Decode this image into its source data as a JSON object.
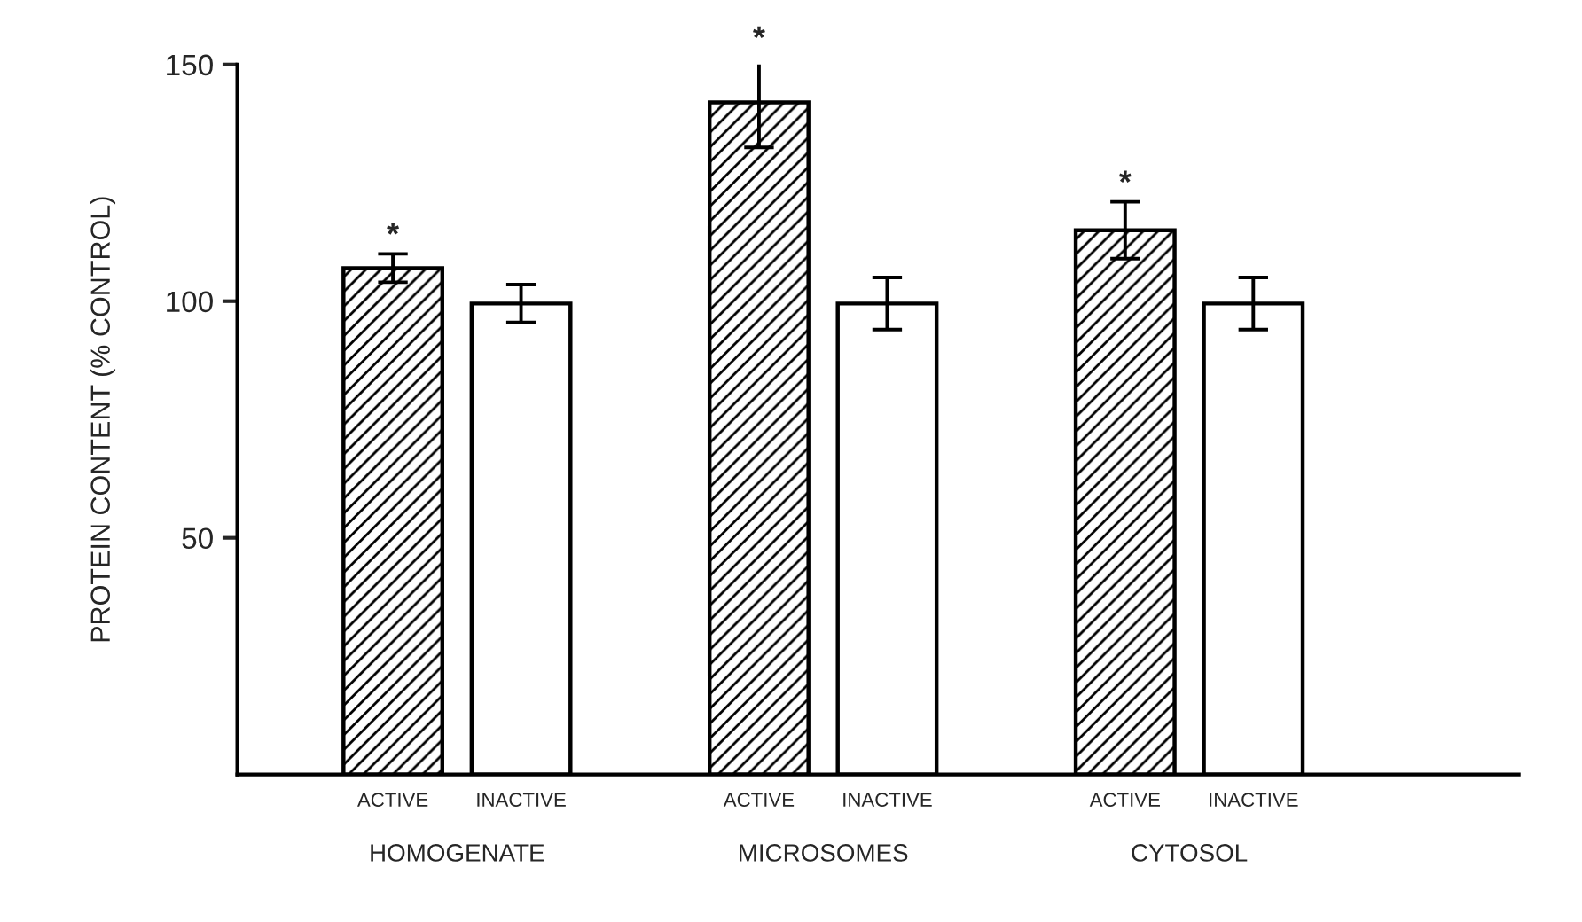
{
  "chart_data": {
    "type": "bar",
    "ylabel": "PROTEIN CONTENT (% CONTROL)",
    "categories": [
      "HOMOGENATE",
      "MICROSOMES",
      "CYTOSOL"
    ],
    "series": [
      {
        "name": "ACTIVE",
        "color": "#000000",
        "values": [
          107,
          142,
          115
        ],
        "errors": [
          3,
          9.5,
          6
        ]
      },
      {
        "name": "INACTIVE",
        "color": "#ffffff",
        "values": [
          99.5,
          99.5,
          99.5
        ],
        "errors": [
          4,
          5.5,
          5.5
        ]
      }
    ],
    "ylim": [
      0,
      150
    ],
    "yticks": [
      50,
      100,
      150
    ],
    "grid": false,
    "legend": false,
    "annotations": [
      "*",
      "*",
      "*"
    ]
  }
}
